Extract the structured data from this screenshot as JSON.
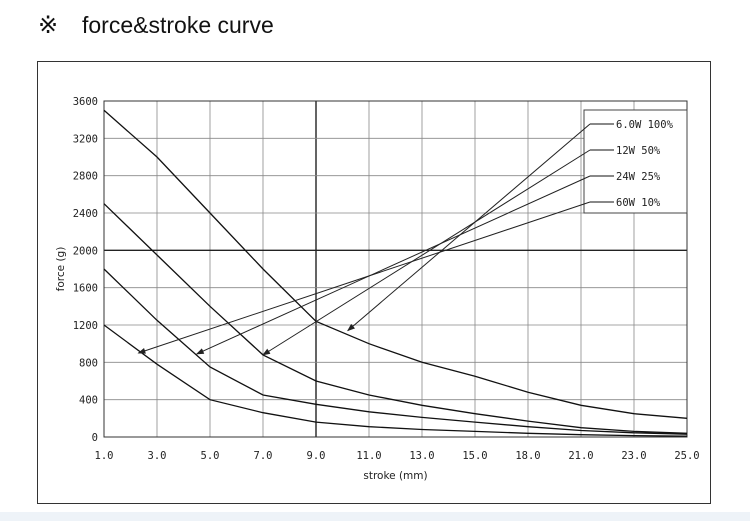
{
  "heading": {
    "mark": "※",
    "title": "force&stroke curve"
  },
  "chart_data": {
    "type": "line",
    "title": "",
    "xlabel": "stroke (mm)",
    "ylabel": "force (g)",
    "xlim": [
      1.0,
      25.0
    ],
    "ylim": [
      0,
      3600
    ],
    "x_tick_labels": [
      "1.0",
      "3.0",
      "5.0",
      "7.0",
      "9.0",
      "11.0",
      "13.0",
      "15.0",
      "18.0",
      "21.0",
      "23.0",
      "25.0"
    ],
    "y_ticks": [
      0,
      400,
      800,
      1200,
      1600,
      2000,
      2400,
      2800,
      3200,
      3600
    ],
    "grid": true,
    "legend_position": "top-right",
    "series": [
      {
        "name": "6.0W 100%",
        "x": [
          1.0,
          3.0,
          5.0,
          7.0,
          9.0,
          11.0,
          13.0,
          15.0,
          18.0,
          21.0,
          23.0,
          25.0
        ],
        "y": [
          3500,
          3000,
          2400,
          1800,
          1240,
          1000,
          800,
          650,
          480,
          340,
          250,
          200
        ]
      },
      {
        "name": "12W 50%",
        "x": [
          1.0,
          3.0,
          5.0,
          7.0,
          9.0,
          11.0,
          13.0,
          15.0,
          18.0,
          21.0,
          23.0,
          25.0
        ],
        "y": [
          2500,
          1950,
          1400,
          880,
          600,
          450,
          340,
          250,
          170,
          100,
          60,
          40
        ]
      },
      {
        "name": "24W 25%",
        "x": [
          1.0,
          3.0,
          5.0,
          7.0,
          9.0,
          11.0,
          13.0,
          15.0,
          18.0,
          21.0,
          23.0,
          25.0
        ],
        "y": [
          1800,
          1250,
          750,
          450,
          350,
          270,
          210,
          160,
          110,
          70,
          45,
          30
        ]
      },
      {
        "name": "60W 10%",
        "x": [
          1.0,
          3.0,
          5.0,
          7.0,
          9.0,
          11.0,
          13.0,
          15.0,
          18.0,
          21.0,
          23.0,
          25.0
        ],
        "y": [
          1200,
          780,
          400,
          260,
          160,
          110,
          80,
          60,
          40,
          25,
          15,
          10
        ]
      }
    ],
    "arrow_targets_x": [
      10.2,
      7.0,
      4.5,
      2.3
    ],
    "arrow_targets_y": [
      1140,
      880,
      890,
      900
    ]
  }
}
